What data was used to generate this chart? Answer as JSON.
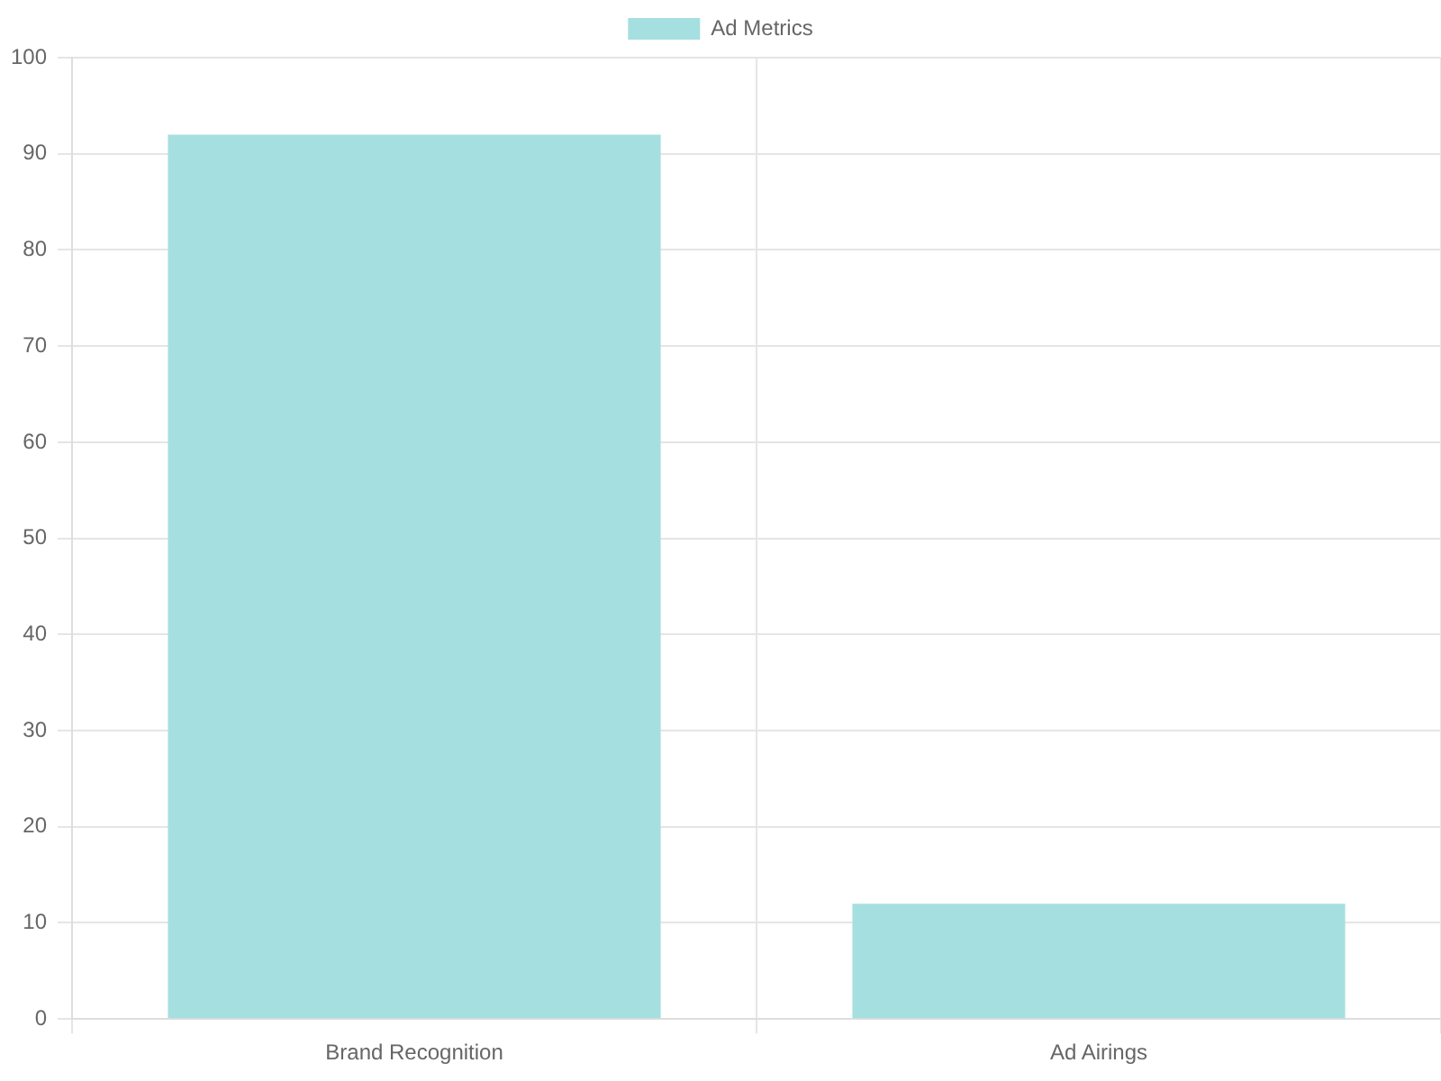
{
  "chart_data": {
    "type": "bar",
    "categories": [
      "Brand Recognition",
      "Ad Airings"
    ],
    "series": [
      {
        "name": "Ad Metrics",
        "color": "#a6dfdf",
        "values": [
          92,
          12
        ]
      }
    ],
    "ylim": [
      0,
      100
    ],
    "yticks": [
      0,
      10,
      20,
      30,
      40,
      50,
      60,
      70,
      80,
      90,
      100
    ],
    "grid": true,
    "legend": "top"
  }
}
